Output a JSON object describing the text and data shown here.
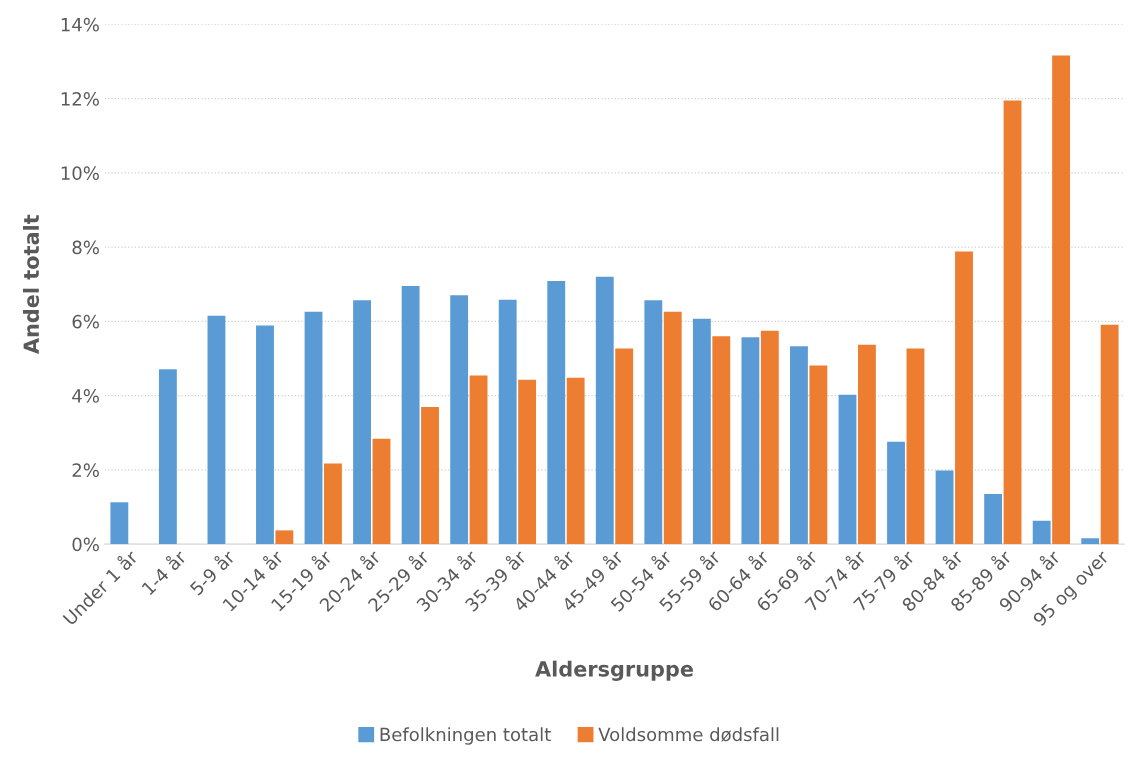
{
  "chart_data": {
    "type": "bar",
    "xlabel": "Aldersgruppe",
    "ylabel": "Andel totalt",
    "categories": [
      "Under 1 år",
      "1-4 år",
      "5-9 år",
      "10-14 år",
      "15-19 år",
      "20-24 år",
      "25-29 år",
      "30-34 år",
      "35-39 år",
      "40-44 år",
      "45-49 år",
      "50-54 år",
      "55-59 år",
      "60-64 år",
      "65-69 år",
      "70-74 år",
      "75-79 år",
      "80-84 år",
      "85-89 år",
      "90-94 år",
      "95 og over"
    ],
    "series": [
      {
        "name": "Befolkningen totalt",
        "color": "#5b9bd5",
        "values": [
          1.13,
          4.71,
          6.15,
          5.89,
          6.26,
          6.57,
          6.95,
          6.7,
          6.58,
          7.09,
          7.2,
          6.57,
          6.07,
          5.57,
          5.33,
          4.02,
          2.76,
          1.98,
          1.35,
          0.63,
          0.16
        ]
      },
      {
        "name": "Voldsomme dødsfall",
        "color": "#ed7d31",
        "values": [
          0,
          0,
          0,
          0.37,
          2.17,
          2.84,
          3.69,
          4.54,
          4.43,
          4.48,
          5.27,
          6.26,
          5.6,
          5.75,
          4.81,
          5.37,
          5.27,
          7.88,
          11.95,
          13.16,
          5.91
        ]
      }
    ],
    "ylim": [
      0,
      14
    ],
    "yticks": [
      {
        "value": 0,
        "label": "0%"
      },
      {
        "value": 2,
        "label": "2%"
      },
      {
        "value": 4,
        "label": "4%"
      },
      {
        "value": 6,
        "label": "6%"
      },
      {
        "value": 8,
        "label": "8%"
      },
      {
        "value": 10,
        "label": "10%"
      },
      {
        "value": 12,
        "label": "12%"
      },
      {
        "value": 14,
        "label": "14%"
      }
    ],
    "grid": "y",
    "legend": "bottom"
  }
}
